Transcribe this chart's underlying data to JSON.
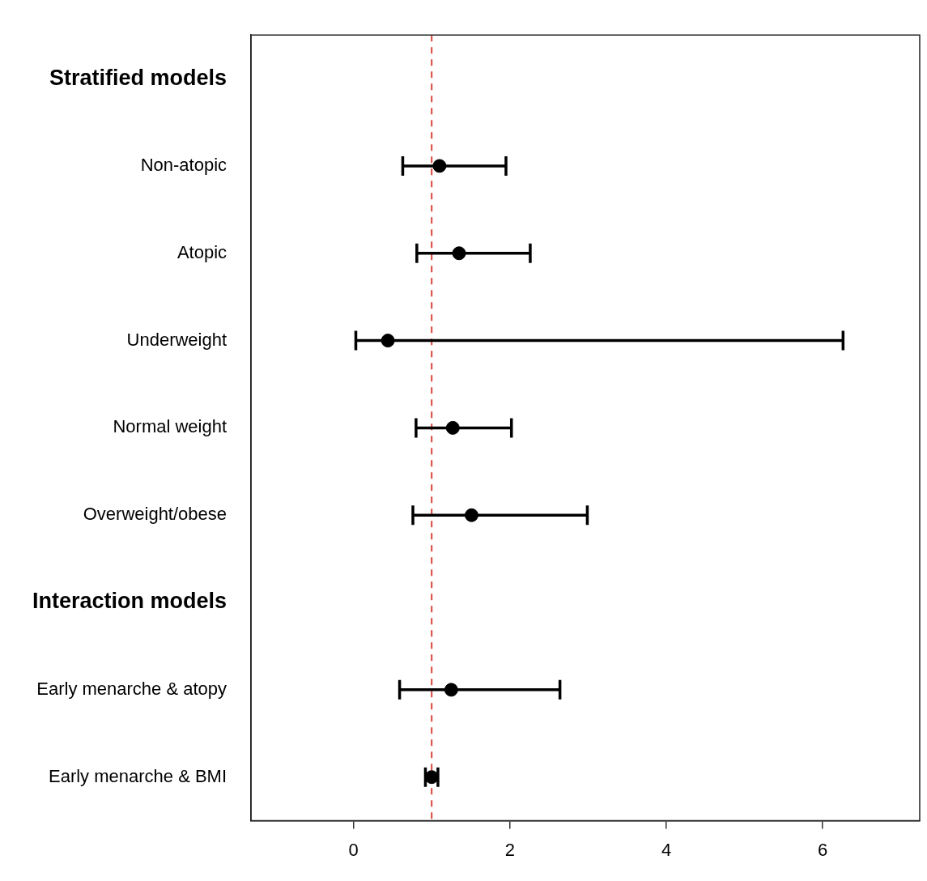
{
  "chart_data": {
    "type": "scatter",
    "orientation": "horizontal",
    "categories": [
      "Stratified models",
      "Non-atopic",
      "Atopic",
      "Underweight",
      "Normal weight",
      "Overweight/obese",
      "Interaction models",
      "Early menarche & atopy",
      "Early menarche & BMI"
    ],
    "values": [
      null,
      1.1,
      1.35,
      0.44,
      1.27,
      1.51,
      null,
      1.25,
      1.0
    ],
    "errors": [
      null,
      [
        0.63,
        1.95
      ],
      [
        0.81,
        2.26
      ],
      [
        0.03,
        6.26
      ],
      [
        0.8,
        2.02
      ],
      [
        0.76,
        2.99
      ],
      null,
      [
        0.59,
        2.64
      ],
      [
        0.92,
        1.08
      ]
    ],
    "color": "#000000",
    "marker": "circle",
    "legend": false,
    "grid": false,
    "xlim": [
      -1.31,
      7.24
    ],
    "xticks": [
      0,
      2,
      4,
      6
    ],
    "ref_lines": [
      {
        "axis": "x",
        "value": 1,
        "color": "#d9463c",
        "line_style": "dashed"
      }
    ]
  }
}
